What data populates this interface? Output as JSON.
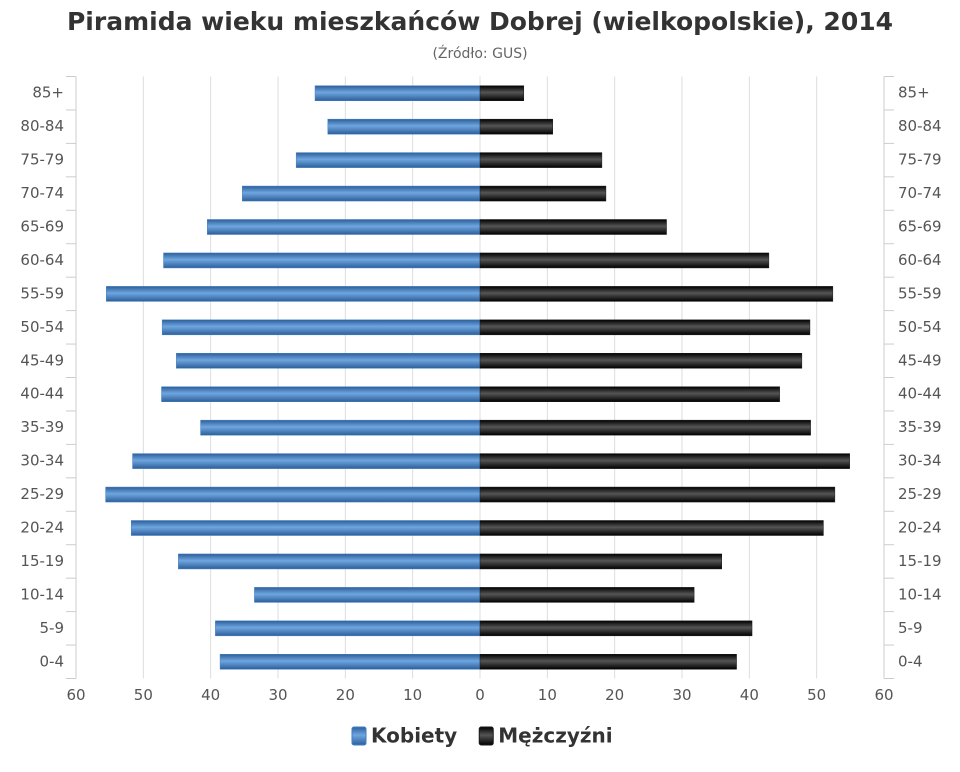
{
  "chart_data": {
    "type": "pyramid",
    "title": "Piramida wieku mieszkańców Dobrej (wielkopolskie), 2014",
    "subtitle": "(Źródło: GUS)",
    "categories": [
      "85+",
      "80-84",
      "75-79",
      "70-74",
      "65-69",
      "60-64",
      "55-59",
      "50-54",
      "45-49",
      "40-44",
      "35-39",
      "30-34",
      "25-29",
      "20-24",
      "15-19",
      "10-14",
      "5-9",
      "0-4"
    ],
    "series": [
      {
        "name": "Kobiety",
        "color": "#3f7fc4",
        "side": "left",
        "values": [
          24.5,
          22.6,
          27.3,
          35.3,
          40.5,
          47.0,
          55.5,
          47.2,
          45.1,
          47.3,
          41.5,
          51.6,
          55.6,
          51.8,
          44.8,
          33.5,
          39.3,
          38.6
        ]
      },
      {
        "name": "Mężczyźni",
        "color": "#1a1a1a",
        "side": "right",
        "values": [
          6.5,
          10.8,
          18.1,
          18.7,
          27.7,
          42.9,
          52.4,
          49.0,
          47.8,
          44.5,
          49.1,
          54.9,
          52.7,
          51.0,
          35.9,
          31.8,
          40.4,
          38.1
        ]
      }
    ],
    "xlim": [
      0,
      60
    ],
    "xticks": [
      0,
      10,
      20,
      30,
      40,
      50,
      60
    ],
    "grid": true
  }
}
